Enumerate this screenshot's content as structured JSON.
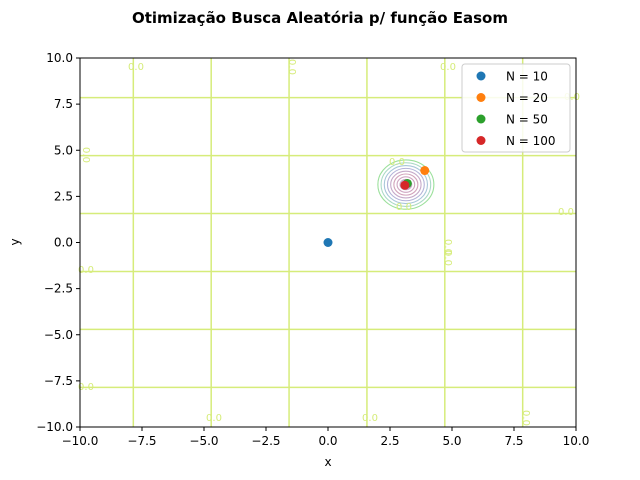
{
  "chart_data": {
    "type": "scatter",
    "title": "Otimização Busca Aleatória p/ função Easom",
    "xlabel": "x",
    "ylabel": "y",
    "xlim": [
      -10,
      10
    ],
    "ylim": [
      -10,
      10
    ],
    "xticks": [
      "−10.0",
      "−7.5",
      "−5.0",
      "−2.5",
      "0.0",
      "2.5",
      "5.0",
      "7.5",
      "10.0"
    ],
    "yticks": [
      "−10.0",
      "−7.5",
      "−5.0",
      "−2.5",
      "0.0",
      "2.5",
      "5.0",
      "7.5",
      "10.0"
    ],
    "xtick_values": [
      -10,
      -7.5,
      -5,
      -2.5,
      0,
      2.5,
      5,
      7.5,
      10
    ],
    "ytick_values": [
      -10,
      -7.5,
      -5,
      -2.5,
      0,
      2.5,
      5,
      7.5,
      10
    ],
    "grid": false,
    "legend_position": "top-right",
    "series": [
      {
        "name": "N = 10",
        "color": "#1f77b4",
        "points": [
          {
            "x": 0.0,
            "y": 0.0
          }
        ]
      },
      {
        "name": "N = 20",
        "color": "#ff7f0e",
        "points": [
          {
            "x": 3.9,
            "y": 3.9
          }
        ]
      },
      {
        "name": "N = 50",
        "color": "#2ca02c",
        "points": [
          {
            "x": 3.2,
            "y": 3.2
          }
        ]
      },
      {
        "name": "N = 100",
        "color": "#d62728",
        "points": [
          {
            "x": 3.1,
            "y": 3.1
          }
        ]
      }
    ],
    "contour": {
      "function": "easom",
      "zero_lines_x": [
        -7.85,
        -4.71,
        -1.57,
        1.57,
        4.71,
        7.85
      ],
      "zero_lines_y": [
        -7.85,
        -4.71,
        -1.57,
        1.57,
        4.71,
        7.85
      ],
      "zero_line_color": "#d6ec7a",
      "center": {
        "x": 3.14,
        "y": 3.14
      },
      "ring_colors": [
        "#9be09b",
        "#a9d9c5",
        "#a8c6d9",
        "#b4b4d9",
        "#c6a9c9",
        "#d2a3bb",
        "#cfa6c2",
        "#c7b3d3"
      ],
      "labels": [
        "0.0",
        "0.0",
        "0.0",
        "0.0",
        "0.0",
        "0.0",
        "0.0",
        "0.0",
        "0.0",
        "0.0",
        "0.0",
        "0.0",
        "0.0",
        "0.0",
        "0.0"
      ]
    }
  }
}
